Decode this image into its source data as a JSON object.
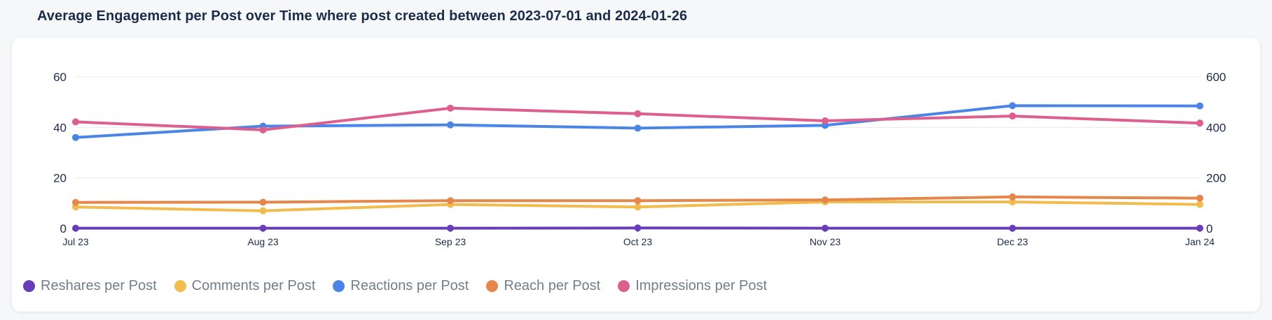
{
  "title": "Average Engagement per Post over Time where post created between 2023-07-01 and 2024-01-26",
  "chart_data": {
    "type": "line",
    "categories": [
      "Jul 23",
      "Aug 23",
      "Sep 23",
      "Oct 23",
      "Nov 23",
      "Dec 23",
      "Jan 24"
    ],
    "y_left": {
      "range": [
        0,
        60
      ],
      "ticks": [
        0,
        20,
        40,
        60
      ]
    },
    "y_right": {
      "range": [
        0,
        600
      ],
      "ticks": [
        0,
        200,
        400,
        600
      ]
    },
    "grid": true,
    "legend_position": "bottom-left",
    "series": [
      {
        "name": "Reshares per Post",
        "axis": "left",
        "color": "#6a3db8",
        "values": [
          0.1,
          0.1,
          0.1,
          0.2,
          0.1,
          0.1,
          0.1
        ]
      },
      {
        "name": "Comments per Post",
        "axis": "left",
        "color": "#f2bb4e",
        "values": [
          8.5,
          7,
          9.5,
          8.5,
          10.5,
          10.5,
          9.5
        ]
      },
      {
        "name": "Reactions per Post",
        "axis": "left",
        "color": "#4a85e6",
        "values": [
          36,
          40.5,
          41,
          39.7,
          40.8,
          48.6,
          48.5
        ]
      },
      {
        "name": "Reach per Post",
        "axis": "right",
        "color": "#e5874a",
        "values": [
          103,
          104,
          110,
          110,
          113,
          125,
          120
        ]
      },
      {
        "name": "Impressions per Post",
        "axis": "right",
        "color": "#dd5f8e",
        "values": [
          422,
          390,
          476,
          454,
          426,
          445,
          417
        ]
      }
    ]
  }
}
